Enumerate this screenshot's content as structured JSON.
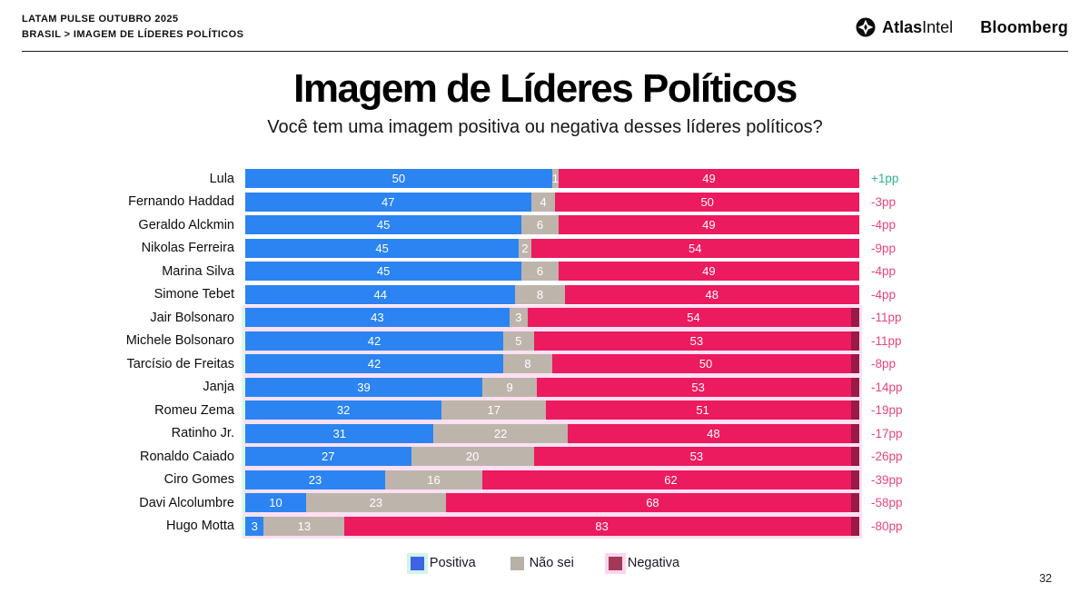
{
  "page": {
    "number": "32"
  },
  "header": {
    "kicker_line1": "LATAM PULSE OUTUBRO 2025",
    "kicker_line2": "BRASIL > IMAGEM DE LÍDERES POLÍTICOS",
    "brand_atlas_bold": "Atlas",
    "brand_atlas_light": "Intel",
    "brand_bloomberg": "Bloomberg"
  },
  "title": "Imagem de Líderes Políticos",
  "subtitle": "Você tem uma imagem positiva ou negativa desses líderes políticos?",
  "colors": {
    "positiva": "#2B84F2",
    "nao_sei": "#BDB5AC",
    "negativa": "#EC1A5E",
    "negativa_dark": "#A13A59",
    "legend_positiva": "#3E63E3",
    "delta_positive": "#2EB394",
    "delta_negative": "#E8457E",
    "glow_pink": "#FFE0F3",
    "glow_mint": "#DBF6EE"
  },
  "legend": [
    {
      "label": "Positiva",
      "swatch_color": "#3E63E3",
      "glow": "#CFF5EA"
    },
    {
      "label": "Não sei",
      "swatch_color": "#B9B1A8",
      "glow": ""
    },
    {
      "label": "Negativa",
      "swatch_color": "#A13A59",
      "glow": "#FFD4EC"
    }
  ],
  "chart_data": {
    "type": "bar",
    "stacked": true,
    "orientation": "horizontal",
    "xlim": [
      0,
      100
    ],
    "grid": false,
    "value_labels": "inside-white",
    "categories": [
      "Lula",
      "Fernando Haddad",
      "Geraldo Alckmin",
      "Nikolas Ferreira",
      "Marina Silva",
      "Simone Tebet",
      "Jair Bolsonaro",
      "Michele Bolsonaro",
      "Tarcísio de Freitas",
      "Janja",
      "Romeu Zema",
      "Ratinho Jr.",
      "Ronaldo Caiado",
      "Ciro Gomes",
      "Davi Alcolumbre",
      "Hugo Motta"
    ],
    "series": [
      {
        "name": "Positiva",
        "values": [
          50,
          47,
          45,
          45,
          45,
          44,
          43,
          42,
          42,
          39,
          32,
          31,
          27,
          23,
          10,
          3
        ]
      },
      {
        "name": "Não sei",
        "values": [
          1,
          4,
          6,
          2,
          6,
          8,
          3,
          5,
          8,
          9,
          17,
          22,
          20,
          16,
          23,
          13
        ]
      },
      {
        "name": "Negativa",
        "values": [
          49,
          50,
          49,
          54,
          49,
          48,
          54,
          53,
          50,
          53,
          51,
          48,
          53,
          62,
          68,
          83
        ]
      }
    ],
    "deltas": [
      "+1pp",
      "-3pp",
      "-4pp",
      "-9pp",
      "-4pp",
      "-4pp",
      "-11pp",
      "-11pp",
      "-8pp",
      "-14pp",
      "-19pp",
      "-17pp",
      "-26pp",
      "-39pp",
      "-58pp",
      "-80pp"
    ],
    "highlighted": [
      false,
      false,
      false,
      false,
      false,
      false,
      true,
      true,
      true,
      true,
      true,
      true,
      true,
      true,
      true,
      true
    ]
  }
}
